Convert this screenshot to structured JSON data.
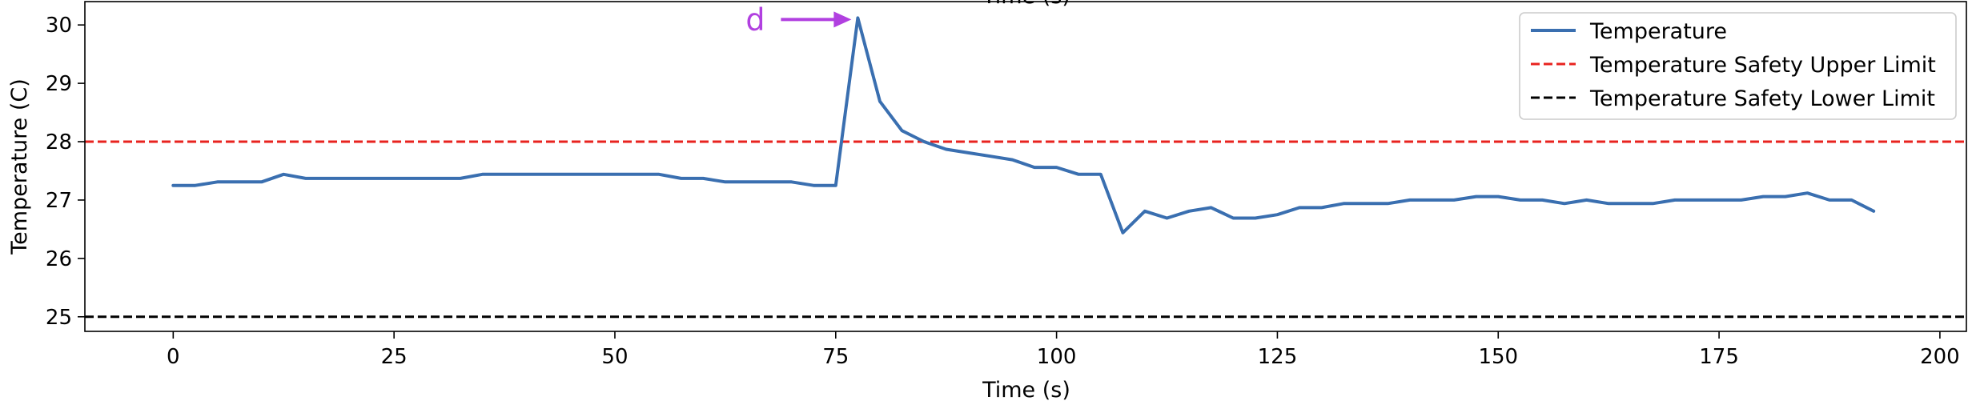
{
  "chart_data": {
    "type": "line",
    "title": "",
    "xlabel": "Time (s)",
    "ylabel": "Temperature (C)",
    "xlim": [
      -10,
      203
    ],
    "ylim": [
      24.75,
      30.4
    ],
    "xticks": [
      0,
      25,
      50,
      75,
      100,
      125,
      150,
      175,
      200
    ],
    "yticks": [
      25,
      26,
      27,
      28,
      29,
      30
    ],
    "grid": false,
    "legend_position": "top-right",
    "series": [
      {
        "name": "Temperature",
        "color": "#3a6fb0",
        "x": [
          0,
          2.5,
          5,
          7.5,
          10,
          12.5,
          15,
          17.5,
          20,
          22.5,
          25,
          27.5,
          30,
          32.5,
          35,
          37.5,
          40,
          42.5,
          45,
          47.5,
          50,
          52.5,
          55,
          57.5,
          60,
          62.5,
          65,
          67.5,
          70,
          72.5,
          75,
          77.5,
          80,
          82.5,
          85,
          87.5,
          90,
          92.5,
          95,
          97.5,
          100,
          102.5,
          105,
          107.5,
          110,
          112.5,
          115,
          117.5,
          120,
          122.5,
          125,
          127.5,
          130,
          132.5,
          135,
          137.5,
          140,
          142.5,
          145,
          147.5,
          150,
          152.5,
          155,
          157.5,
          160,
          162.5,
          165,
          167.5,
          170,
          172.5,
          175,
          177.5,
          180,
          182.5,
          185,
          187.5,
          190,
          192.5
        ],
        "values": [
          27.25,
          27.25,
          27.31,
          27.31,
          27.31,
          27.44,
          27.37,
          27.37,
          27.37,
          27.37,
          27.37,
          27.37,
          27.37,
          27.37,
          27.44,
          27.44,
          27.44,
          27.44,
          27.44,
          27.44,
          27.44,
          27.44,
          27.44,
          27.37,
          27.37,
          27.31,
          27.31,
          27.31,
          27.31,
          27.25,
          27.25,
          30.12,
          28.69,
          28.19,
          28.0,
          27.87,
          27.81,
          27.75,
          27.69,
          27.56,
          27.56,
          27.44,
          27.44,
          26.44,
          26.81,
          26.69,
          26.81,
          26.87,
          26.69,
          26.69,
          26.75,
          26.87,
          26.87,
          26.94,
          26.94,
          26.94,
          27.0,
          27.0,
          27.0,
          27.06,
          27.06,
          27.0,
          27.0,
          26.94,
          27.0,
          26.94,
          26.94,
          26.94,
          27.0,
          27.0,
          27.0,
          27.0,
          27.06,
          27.06,
          27.12,
          27.0,
          27.0,
          26.81
        ]
      }
    ],
    "reference_lines": [
      {
        "name": "Temperature Safety Upper Limit",
        "y": 28,
        "color": "#e8231f",
        "style": "dashed"
      },
      {
        "name": "Temperature Safety Lower Limit",
        "y": 25,
        "color": "#000000",
        "style": "dashed"
      }
    ],
    "annotations": [
      {
        "text": "d",
        "x": 77.5,
        "y": 30.12,
        "color": "#b140e0",
        "arrow": true
      }
    ],
    "cropped_top_text": "Time (s)"
  }
}
